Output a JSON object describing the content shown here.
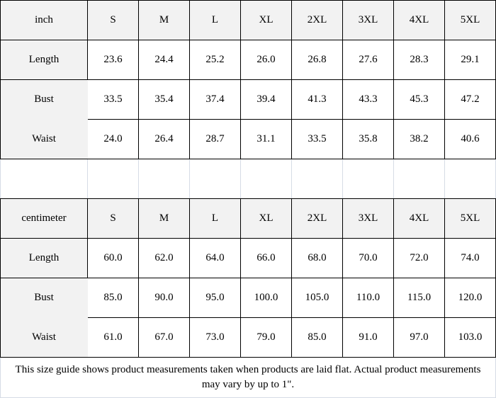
{
  "tables": [
    {
      "unit": "inch",
      "sizes": [
        "S",
        "M",
        "L",
        "XL",
        "2XL",
        "3XL",
        "4XL",
        "5XL"
      ],
      "rows": [
        {
          "label": "Length",
          "values": [
            "23.6",
            "24.4",
            "25.2",
            "26.0",
            "26.8",
            "27.6",
            "28.3",
            "29.1"
          ]
        },
        {
          "label": "Bust",
          "values": [
            "33.5",
            "35.4",
            "37.4",
            "39.4",
            "41.3",
            "43.3",
            "45.3",
            "47.2"
          ]
        },
        {
          "label": "Waist",
          "values": [
            "24.0",
            "26.4",
            "28.7",
            "31.1",
            "33.5",
            "35.8",
            "38.2",
            "40.6"
          ]
        }
      ]
    },
    {
      "unit": "centimeter",
      "sizes": [
        "S",
        "M",
        "L",
        "XL",
        "2XL",
        "3XL",
        "4XL",
        "5XL"
      ],
      "rows": [
        {
          "label": "Length",
          "values": [
            "60.0",
            "62.0",
            "64.0",
            "66.0",
            "68.0",
            "70.0",
            "72.0",
            "74.0"
          ]
        },
        {
          "label": "Bust",
          "values": [
            "85.0",
            "90.0",
            "95.0",
            "100.0",
            "105.0",
            "110.0",
            "115.0",
            "120.0"
          ]
        },
        {
          "label": "Waist",
          "values": [
            "61.0",
            "67.0",
            "73.0",
            "79.0",
            "85.0",
            "91.0",
            "97.0",
            "103.0"
          ]
        }
      ]
    }
  ],
  "footer": "This size guide shows product measurements taken when products are laid flat. Actual product measurements may vary by up to 1\".",
  "colors": {
    "header_bg": "#f2f2f2",
    "border": "#000000",
    "spacer_border": "#d6dce5"
  }
}
